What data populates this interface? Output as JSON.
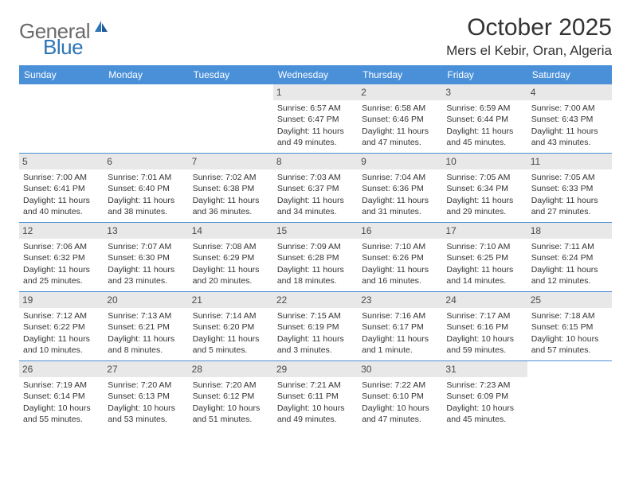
{
  "logo": {
    "text1": "General",
    "text2": "Blue"
  },
  "title": "October 2025",
  "location": "Mers el Kebir, Oran, Algeria",
  "colors": {
    "header_bg": "#4a90d9",
    "header_text": "#ffffff",
    "daynum_bg": "#e8e8e8",
    "border": "#4a90d9",
    "body_text": "#333333",
    "logo_gray": "#6b6b6b",
    "logo_blue": "#2e75b6"
  },
  "dayNames": [
    "Sunday",
    "Monday",
    "Tuesday",
    "Wednesday",
    "Thursday",
    "Friday",
    "Saturday"
  ],
  "weeks": [
    [
      {
        "empty": true
      },
      {
        "empty": true
      },
      {
        "empty": true
      },
      {
        "num": "1",
        "sunrise": "Sunrise: 6:57 AM",
        "sunset": "Sunset: 6:47 PM",
        "daylight1": "Daylight: 11 hours",
        "daylight2": "and 49 minutes."
      },
      {
        "num": "2",
        "sunrise": "Sunrise: 6:58 AM",
        "sunset": "Sunset: 6:46 PM",
        "daylight1": "Daylight: 11 hours",
        "daylight2": "and 47 minutes."
      },
      {
        "num": "3",
        "sunrise": "Sunrise: 6:59 AM",
        "sunset": "Sunset: 6:44 PM",
        "daylight1": "Daylight: 11 hours",
        "daylight2": "and 45 minutes."
      },
      {
        "num": "4",
        "sunrise": "Sunrise: 7:00 AM",
        "sunset": "Sunset: 6:43 PM",
        "daylight1": "Daylight: 11 hours",
        "daylight2": "and 43 minutes."
      }
    ],
    [
      {
        "num": "5",
        "sunrise": "Sunrise: 7:00 AM",
        "sunset": "Sunset: 6:41 PM",
        "daylight1": "Daylight: 11 hours",
        "daylight2": "and 40 minutes."
      },
      {
        "num": "6",
        "sunrise": "Sunrise: 7:01 AM",
        "sunset": "Sunset: 6:40 PM",
        "daylight1": "Daylight: 11 hours",
        "daylight2": "and 38 minutes."
      },
      {
        "num": "7",
        "sunrise": "Sunrise: 7:02 AM",
        "sunset": "Sunset: 6:38 PM",
        "daylight1": "Daylight: 11 hours",
        "daylight2": "and 36 minutes."
      },
      {
        "num": "8",
        "sunrise": "Sunrise: 7:03 AM",
        "sunset": "Sunset: 6:37 PM",
        "daylight1": "Daylight: 11 hours",
        "daylight2": "and 34 minutes."
      },
      {
        "num": "9",
        "sunrise": "Sunrise: 7:04 AM",
        "sunset": "Sunset: 6:36 PM",
        "daylight1": "Daylight: 11 hours",
        "daylight2": "and 31 minutes."
      },
      {
        "num": "10",
        "sunrise": "Sunrise: 7:05 AM",
        "sunset": "Sunset: 6:34 PM",
        "daylight1": "Daylight: 11 hours",
        "daylight2": "and 29 minutes."
      },
      {
        "num": "11",
        "sunrise": "Sunrise: 7:05 AM",
        "sunset": "Sunset: 6:33 PM",
        "daylight1": "Daylight: 11 hours",
        "daylight2": "and 27 minutes."
      }
    ],
    [
      {
        "num": "12",
        "sunrise": "Sunrise: 7:06 AM",
        "sunset": "Sunset: 6:32 PM",
        "daylight1": "Daylight: 11 hours",
        "daylight2": "and 25 minutes."
      },
      {
        "num": "13",
        "sunrise": "Sunrise: 7:07 AM",
        "sunset": "Sunset: 6:30 PM",
        "daylight1": "Daylight: 11 hours",
        "daylight2": "and 23 minutes."
      },
      {
        "num": "14",
        "sunrise": "Sunrise: 7:08 AM",
        "sunset": "Sunset: 6:29 PM",
        "daylight1": "Daylight: 11 hours",
        "daylight2": "and 20 minutes."
      },
      {
        "num": "15",
        "sunrise": "Sunrise: 7:09 AM",
        "sunset": "Sunset: 6:28 PM",
        "daylight1": "Daylight: 11 hours",
        "daylight2": "and 18 minutes."
      },
      {
        "num": "16",
        "sunrise": "Sunrise: 7:10 AM",
        "sunset": "Sunset: 6:26 PM",
        "daylight1": "Daylight: 11 hours",
        "daylight2": "and 16 minutes."
      },
      {
        "num": "17",
        "sunrise": "Sunrise: 7:10 AM",
        "sunset": "Sunset: 6:25 PM",
        "daylight1": "Daylight: 11 hours",
        "daylight2": "and 14 minutes."
      },
      {
        "num": "18",
        "sunrise": "Sunrise: 7:11 AM",
        "sunset": "Sunset: 6:24 PM",
        "daylight1": "Daylight: 11 hours",
        "daylight2": "and 12 minutes."
      }
    ],
    [
      {
        "num": "19",
        "sunrise": "Sunrise: 7:12 AM",
        "sunset": "Sunset: 6:22 PM",
        "daylight1": "Daylight: 11 hours",
        "daylight2": "and 10 minutes."
      },
      {
        "num": "20",
        "sunrise": "Sunrise: 7:13 AM",
        "sunset": "Sunset: 6:21 PM",
        "daylight1": "Daylight: 11 hours",
        "daylight2": "and 8 minutes."
      },
      {
        "num": "21",
        "sunrise": "Sunrise: 7:14 AM",
        "sunset": "Sunset: 6:20 PM",
        "daylight1": "Daylight: 11 hours",
        "daylight2": "and 5 minutes."
      },
      {
        "num": "22",
        "sunrise": "Sunrise: 7:15 AM",
        "sunset": "Sunset: 6:19 PM",
        "daylight1": "Daylight: 11 hours",
        "daylight2": "and 3 minutes."
      },
      {
        "num": "23",
        "sunrise": "Sunrise: 7:16 AM",
        "sunset": "Sunset: 6:17 PM",
        "daylight1": "Daylight: 11 hours",
        "daylight2": "and 1 minute."
      },
      {
        "num": "24",
        "sunrise": "Sunrise: 7:17 AM",
        "sunset": "Sunset: 6:16 PM",
        "daylight1": "Daylight: 10 hours",
        "daylight2": "and 59 minutes."
      },
      {
        "num": "25",
        "sunrise": "Sunrise: 7:18 AM",
        "sunset": "Sunset: 6:15 PM",
        "daylight1": "Daylight: 10 hours",
        "daylight2": "and 57 minutes."
      }
    ],
    [
      {
        "num": "26",
        "sunrise": "Sunrise: 7:19 AM",
        "sunset": "Sunset: 6:14 PM",
        "daylight1": "Daylight: 10 hours",
        "daylight2": "and 55 minutes."
      },
      {
        "num": "27",
        "sunrise": "Sunrise: 7:20 AM",
        "sunset": "Sunset: 6:13 PM",
        "daylight1": "Daylight: 10 hours",
        "daylight2": "and 53 minutes."
      },
      {
        "num": "28",
        "sunrise": "Sunrise: 7:20 AM",
        "sunset": "Sunset: 6:12 PM",
        "daylight1": "Daylight: 10 hours",
        "daylight2": "and 51 minutes."
      },
      {
        "num": "29",
        "sunrise": "Sunrise: 7:21 AM",
        "sunset": "Sunset: 6:11 PM",
        "daylight1": "Daylight: 10 hours",
        "daylight2": "and 49 minutes."
      },
      {
        "num": "30",
        "sunrise": "Sunrise: 7:22 AM",
        "sunset": "Sunset: 6:10 PM",
        "daylight1": "Daylight: 10 hours",
        "daylight2": "and 47 minutes."
      },
      {
        "num": "31",
        "sunrise": "Sunrise: 7:23 AM",
        "sunset": "Sunset: 6:09 PM",
        "daylight1": "Daylight: 10 hours",
        "daylight2": "and 45 minutes."
      },
      {
        "empty": true
      }
    ]
  ]
}
